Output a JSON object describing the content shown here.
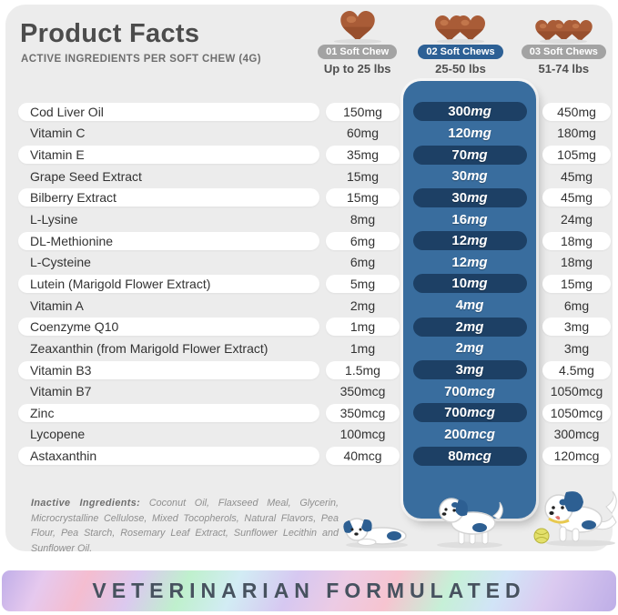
{
  "header": {
    "title": "Product Facts",
    "subtitle": "ACTIVE INGREDIENTS PER SOFT CHEW (4G)",
    "columns": [
      {
        "badge": "01 Soft Chew",
        "weight": "Up to 25 lbs",
        "chews": 1,
        "highlighted": false
      },
      {
        "badge": "02 Soft Chews",
        "weight": "25-50 lbs",
        "chews": 2,
        "highlighted": true
      },
      {
        "badge": "03 Soft Chews",
        "weight": "51-74 lbs",
        "chews": 3,
        "highlighted": false
      }
    ]
  },
  "table": {
    "rows": [
      {
        "name": "Cod Liver Oil",
        "dose1": "150mg",
        "dose2": "300mg",
        "dose3": "450mg"
      },
      {
        "name": "Vitamin C",
        "dose1": "60mg",
        "dose2": "120mg",
        "dose3": "180mg"
      },
      {
        "name": "Vitamin E",
        "dose1": "35mg",
        "dose2": "70mg",
        "dose3": "105mg"
      },
      {
        "name": "Grape Seed Extract",
        "dose1": "15mg",
        "dose2": "30mg",
        "dose3": "45mg"
      },
      {
        "name": "Bilberry Extract",
        "dose1": "15mg",
        "dose2": "30mg",
        "dose3": "45mg"
      },
      {
        "name": "L-Lysine",
        "dose1": "8mg",
        "dose2": "16mg",
        "dose3": "24mg"
      },
      {
        "name": "DL-Methionine",
        "dose1": "6mg",
        "dose2": "12mg",
        "dose3": "18mg"
      },
      {
        "name": "L-Cysteine",
        "dose1": "6mg",
        "dose2": "12mg",
        "dose3": "18mg"
      },
      {
        "name": "Lutein (Marigold Flower Extract)",
        "dose1": "5mg",
        "dose2": "10mg",
        "dose3": "15mg"
      },
      {
        "name": "Vitamin A",
        "dose1": "2mg",
        "dose2": "4mg",
        "dose3": "6mg"
      },
      {
        "name": "Coenzyme Q10",
        "dose1": "1mg",
        "dose2": "2mg",
        "dose3": "3mg"
      },
      {
        "name": "Zeaxanthin (from Marigold Flower Extract)",
        "dose1": "1mg",
        "dose2": "2mg",
        "dose3": "3mg"
      },
      {
        "name": "Vitamin B3",
        "dose1": "1.5mg",
        "dose2": "3mg",
        "dose3": "4.5mg"
      },
      {
        "name": "Vitamin B7",
        "dose1": "350mcg",
        "dose2": "700mcg",
        "dose3": "1050mcg"
      },
      {
        "name": "Zinc",
        "dose1": "350mcg",
        "dose2": "700mcg",
        "dose3": "1050mcg"
      },
      {
        "name": "Lycopene",
        "dose1": "100mcg",
        "dose2": "200mcg",
        "dose3": "300mcg"
      },
      {
        "name": "Astaxanthin",
        "dose1": "40mcg",
        "dose2": "80mcg",
        "dose3": "120mcg"
      }
    ]
  },
  "inactive": {
    "label": "Inactive Ingredients:",
    "text": " Coconut Oil, Flaxseed Meal, Glycerin, Microcrystalline Cellulose, Mixed Tocopherols, Natural Flavors, Pea Flour, Pea Starch, Rosemary Leaf Extract, Sunflower Lecithin and Sunflower Oil."
  },
  "footer": {
    "text": "VETERINARIAN FORMULATED"
  },
  "colors": {
    "banner_blue": "#396d9e",
    "pill_navy": "#1d4065",
    "badge_blue": "#2d6095",
    "badge_gray": "#a3a3a3",
    "chew_brown": "#a95c37",
    "chew_highlight": "#c4794e",
    "chew_shade": "#8a4527",
    "dog_blue": "#2d5f92",
    "ball_yellow": "#e3e06a"
  }
}
